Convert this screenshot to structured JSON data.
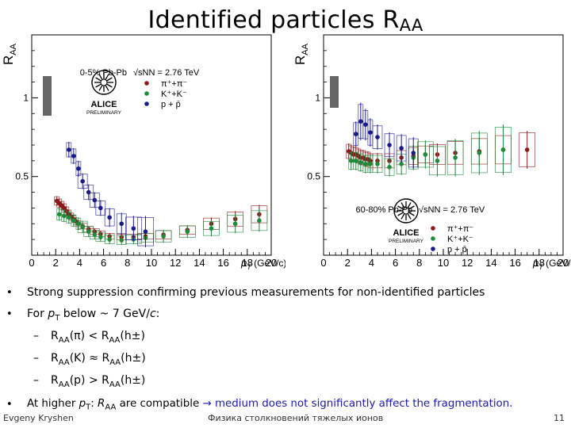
{
  "slide": {
    "title": "Identified particles R",
    "title_sub": "AA",
    "bullets": [
      {
        "prefix": "Strong suppression confirming previous measurements for non-identified particles"
      },
      {
        "prefix": "For ",
        "pt": "p",
        "pt_sub": "T",
        "rest": " below ~ 7 GeV/",
        "c": "c",
        "tail": ":"
      },
      {
        "raa": "R",
        "raa_sub": "AA",
        "lhs": "(π)",
        "op": " < ",
        "rhs": "(h±)"
      },
      {
        "raa": "R",
        "raa_sub": "AA",
        "lhs": "(K)",
        "op": " ≈ ",
        "rhs": "(h±)"
      },
      {
        "raa": "R",
        "raa_sub": "AA",
        "lhs": "(p)",
        "op": " > ",
        "rhs": "(h±)"
      },
      {
        "prefix": "At higher ",
        "pt": "p",
        "pt_sub": "T",
        "mid": ": ",
        "raa": "R",
        "raa_sub": "AA",
        "after": " are compatible ",
        "arrow": "→",
        "blue_text": " medium does not  significantly affect the fragmentation."
      }
    ],
    "bullet_marker": "•",
    "dash_marker": "–",
    "footer": {
      "author": "Evgeny Kryshen",
      "course": "Физика столкновений тяжелых ионов",
      "page": "11"
    }
  },
  "colors": {
    "pion": "#8b1a1a",
    "kaon": "#1e8a3a",
    "proton": "#1a1a8c",
    "grey_box": "#666666",
    "axis": "#000000",
    "highlight": "#1a1aa8"
  },
  "chart_data": [
    {
      "type": "scatter",
      "title": "0-5% Pb-Pb",
      "energy_label": "√sNN = 2.76 TeV",
      "logo_top": "ALICE",
      "logo_bottom": "PRELIMINARY",
      "ylabel": "RAA",
      "xlabel_main": "p",
      "xlabel_sub": "T",
      "xlabel_unit": "(GeV/c)",
      "xlim": [
        0,
        20
      ],
      "ylim": [
        0,
        1.4
      ],
      "xticks": [
        "0",
        "2",
        "4",
        "6",
        "8",
        "10",
        "12",
        "14",
        "16",
        "18",
        "20"
      ],
      "yticks": [
        "0.5",
        "1"
      ],
      "legend": [
        "π⁺+π⁻",
        "K⁺+K⁻",
        "p + p̄"
      ],
      "legend_position": "top",
      "series": [
        {
          "name": "π⁺+π⁻",
          "color": "#8b1a1a",
          "x": [
            2.1,
            2.3,
            2.5,
            2.7,
            2.9,
            3.1,
            3.3,
            3.5,
            3.7,
            3.9,
            4.25,
            4.75,
            5.25,
            5.75,
            6.5,
            7.5,
            8.5,
            9.5,
            11,
            13,
            15,
            17,
            19
          ],
          "y": [
            0.345,
            0.33,
            0.315,
            0.3,
            0.28,
            0.26,
            0.245,
            0.23,
            0.215,
            0.2,
            0.185,
            0.165,
            0.15,
            0.135,
            0.12,
            0.115,
            0.115,
            0.12,
            0.13,
            0.16,
            0.2,
            0.23,
            0.26
          ],
          "err": [
            0.03,
            0.03,
            0.03,
            0.03,
            0.03,
            0.03,
            0.025,
            0.025,
            0.025,
            0.02,
            0.02,
            0.02,
            0.02,
            0.02,
            0.02,
            0.02,
            0.02,
            0.02,
            0.03,
            0.03,
            0.04,
            0.05,
            0.06
          ]
        },
        {
          "name": "K⁺+K⁻",
          "color": "#1e8a3a",
          "x": [
            2.3,
            2.7,
            3.1,
            3.5,
            3.9,
            4.25,
            4.75,
            5.25,
            5.75,
            6.5,
            7.5,
            8.5,
            9.5,
            11,
            13,
            15,
            17,
            19
          ],
          "y": [
            0.26,
            0.25,
            0.24,
            0.22,
            0.2,
            0.18,
            0.15,
            0.13,
            0.115,
            0.1,
            0.095,
            0.1,
            0.11,
            0.12,
            0.15,
            0.17,
            0.2,
            0.22
          ],
          "err": [
            0.04,
            0.04,
            0.04,
            0.04,
            0.04,
            0.04,
            0.035,
            0.03,
            0.03,
            0.03,
            0.03,
            0.03,
            0.03,
            0.04,
            0.04,
            0.05,
            0.06,
            0.07
          ]
        },
        {
          "name": "p + p̄",
          "color": "#1a1a8c",
          "x": [
            3.1,
            3.5,
            3.9,
            4.25,
            4.75,
            5.25,
            5.75,
            6.5,
            7.5,
            8.5,
            9.5
          ],
          "y": [
            0.67,
            0.63,
            0.55,
            0.47,
            0.4,
            0.35,
            0.3,
            0.24,
            0.2,
            0.17,
            0.15
          ],
          "err": [
            0.05,
            0.05,
            0.05,
            0.05,
            0.05,
            0.05,
            0.05,
            0.06,
            0.07,
            0.08,
            0.1
          ]
        }
      ]
    },
    {
      "type": "scatter",
      "title": "60-80% Pb-Pb",
      "energy_label": "√sNN = 2.76 TeV",
      "logo_top": "ALICE",
      "logo_bottom": "PRELIMINARY",
      "ylabel": "RAA",
      "xlabel_main": "p",
      "xlabel_sub": "T",
      "xlabel_unit": "(GeV/c)",
      "xlim": [
        0,
        20
      ],
      "ylim": [
        0,
        1.4
      ],
      "xticks": [
        "0",
        "2",
        "4",
        "6",
        "8",
        "10",
        "12",
        "14",
        "16",
        "18",
        "20"
      ],
      "yticks": [
        "0.5",
        "1"
      ],
      "legend": [
        "π⁺+π⁻",
        "K⁺+K⁻",
        "p + p̄"
      ],
      "legend_position": "bottom-right",
      "series": [
        {
          "name": "π⁺+π⁻",
          "color": "#8b1a1a",
          "x": [
            2.1,
            2.3,
            2.5,
            2.7,
            2.9,
            3.1,
            3.3,
            3.5,
            3.7,
            3.9,
            4.5,
            5.5,
            6.5,
            7.5,
            8.5,
            9.5,
            11,
            13,
            15,
            17
          ],
          "y": [
            0.66,
            0.65,
            0.64,
            0.64,
            0.63,
            0.62,
            0.62,
            0.61,
            0.61,
            0.6,
            0.6,
            0.6,
            0.62,
            0.63,
            0.64,
            0.64,
            0.65,
            0.66,
            0.67,
            0.67
          ],
          "err": [
            0.05,
            0.05,
            0.05,
            0.05,
            0.05,
            0.05,
            0.05,
            0.05,
            0.05,
            0.05,
            0.05,
            0.05,
            0.05,
            0.06,
            0.06,
            0.07,
            0.08,
            0.09,
            0.1,
            0.12
          ]
        },
        {
          "name": "K⁺+K⁻",
          "color": "#1e8a3a",
          "x": [
            2.3,
            2.7,
            3.1,
            3.5,
            3.9,
            4.5,
            5.5,
            6.5,
            7.5,
            8.5,
            9.5,
            11,
            13,
            15
          ],
          "y": [
            0.6,
            0.6,
            0.59,
            0.58,
            0.58,
            0.58,
            0.56,
            0.58,
            0.62,
            0.64,
            0.6,
            0.62,
            0.65,
            0.67
          ],
          "err": [
            0.06,
            0.06,
            0.06,
            0.06,
            0.06,
            0.06,
            0.06,
            0.07,
            0.08,
            0.09,
            0.1,
            0.12,
            0.14,
            0.16
          ]
        },
        {
          "name": "p + p̄",
          "color": "#1a1a8c",
          "x": [
            2.7,
            3.1,
            3.5,
            3.9,
            4.5,
            5.5,
            6.5,
            7.5
          ],
          "y": [
            0.77,
            0.85,
            0.83,
            0.78,
            0.75,
            0.7,
            0.68,
            0.65
          ],
          "err": [
            0.08,
            0.12,
            0.1,
            0.09,
            0.08,
            0.08,
            0.09,
            0.1
          ]
        }
      ]
    }
  ]
}
